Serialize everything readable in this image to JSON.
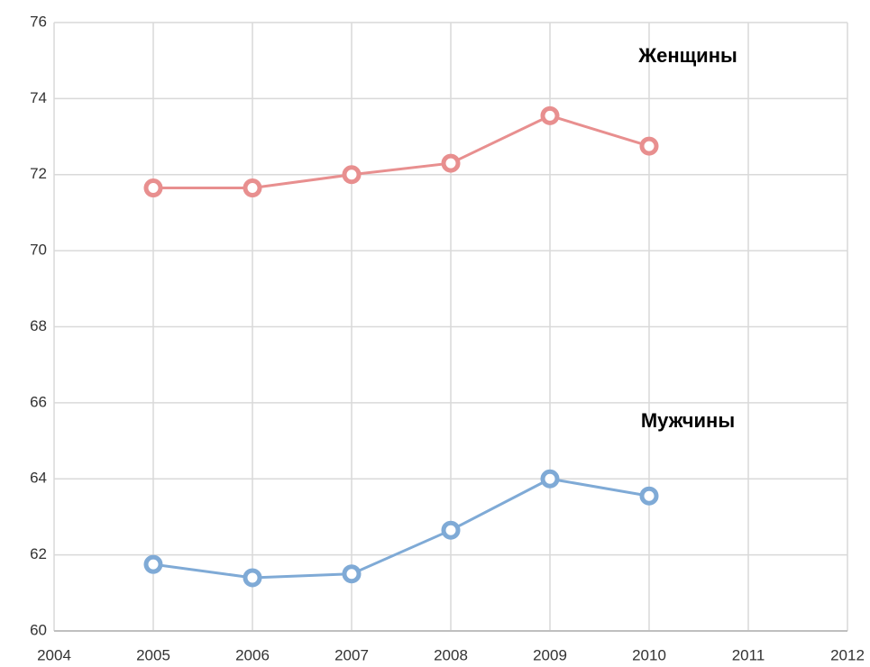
{
  "chart_data": {
    "type": "line",
    "x": [
      2005,
      2006,
      2007,
      2008,
      2009,
      2010
    ],
    "series": [
      {
        "name": "Женщины",
        "color": "#e88f8f",
        "values": [
          71.65,
          71.65,
          72.0,
          72.3,
          73.55,
          72.75
        ]
      },
      {
        "name": "Мужчины",
        "color": "#7faad6",
        "values": [
          61.75,
          61.4,
          61.5,
          62.65,
          64.0,
          63.55
        ]
      }
    ],
    "xlim": [
      2004,
      2012
    ],
    "xticks": [
      2004,
      2005,
      2006,
      2007,
      2008,
      2009,
      2010,
      2011,
      2012
    ],
    "ylim": [
      60,
      76
    ],
    "yticks": [
      60,
      62,
      64,
      66,
      68,
      70,
      72,
      74,
      76
    ],
    "grid": true
  }
}
